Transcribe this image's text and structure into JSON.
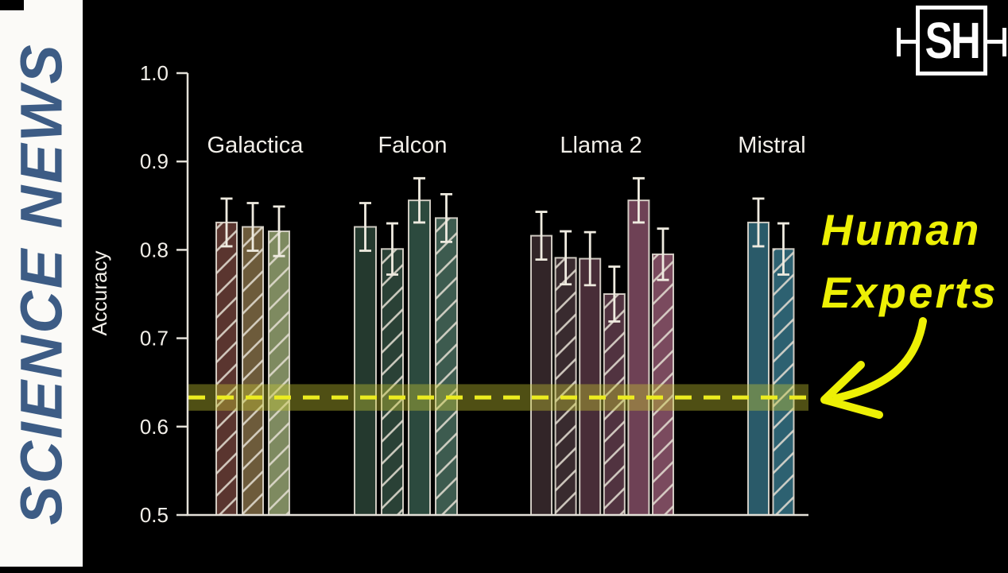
{
  "banner": {
    "title": "SCIENCE NEWS",
    "text_color": "#3d5c85",
    "bg_color": "#fbfaf7"
  },
  "logo": {
    "text": "SH",
    "color": "#fdfdfd"
  },
  "annotation": {
    "line1": "Human",
    "line2": "Experts",
    "color": "#edf005"
  },
  "chart_data": {
    "type": "bar",
    "title": "",
    "xlabel": "",
    "ylabel": "Accuracy",
    "ylim": [
      0.5,
      1.0
    ],
    "yticks": [
      "1.0",
      "0.9",
      "0.8",
      "0.7",
      "0.6",
      "0.5"
    ],
    "grid": false,
    "legend_position": "none",
    "error_bars": true,
    "hatch_note": "hatched bars use light diagonal '/' stripes",
    "groups": [
      {
        "label": "Galactica",
        "bars": [
          {
            "value": 0.831,
            "error": 0.027,
            "color": "#5a352f",
            "hatched": true
          },
          {
            "value": 0.826,
            "error": 0.027,
            "color": "#6d5b3b",
            "hatched": true
          },
          {
            "value": 0.821,
            "error": 0.028,
            "color": "#7e8a60",
            "hatched": true
          }
        ]
      },
      {
        "label": "Falcon",
        "bars": [
          {
            "value": 0.826,
            "error": 0.027,
            "color": "#24392e",
            "hatched": false
          },
          {
            "value": 0.801,
            "error": 0.029,
            "color": "#2a4136",
            "hatched": true
          },
          {
            "value": 0.856,
            "error": 0.025,
            "color": "#2c4a3e",
            "hatched": false
          },
          {
            "value": 0.836,
            "error": 0.027,
            "color": "#3d5b4f",
            "hatched": true
          }
        ]
      },
      {
        "label": "Llama 2",
        "bars": [
          {
            "value": 0.816,
            "error": 0.027,
            "color": "#322528",
            "hatched": false
          },
          {
            "value": 0.791,
            "error": 0.03,
            "color": "#392b2f",
            "hatched": true
          },
          {
            "value": 0.79,
            "error": 0.03,
            "color": "#482d38",
            "hatched": false
          },
          {
            "value": 0.75,
            "error": 0.031,
            "color": "#513340",
            "hatched": true
          },
          {
            "value": 0.856,
            "error": 0.025,
            "color": "#6e4155",
            "hatched": false
          },
          {
            "value": 0.795,
            "error": 0.029,
            "color": "#7a4a5e",
            "hatched": true
          }
        ]
      },
      {
        "label": "Mistral",
        "bars": [
          {
            "value": 0.831,
            "error": 0.027,
            "color": "#2a5a69",
            "hatched": false
          },
          {
            "value": 0.801,
            "error": 0.029,
            "color": "#2d6171",
            "hatched": true
          }
        ]
      }
    ],
    "human_experts_line": {
      "label": "Human Experts",
      "value": 0.633,
      "band": [
        0.618,
        0.648
      ],
      "line_color": "#ecec20",
      "band_color": "rgba(197,197,50,0.40)",
      "style": "dashed"
    }
  }
}
